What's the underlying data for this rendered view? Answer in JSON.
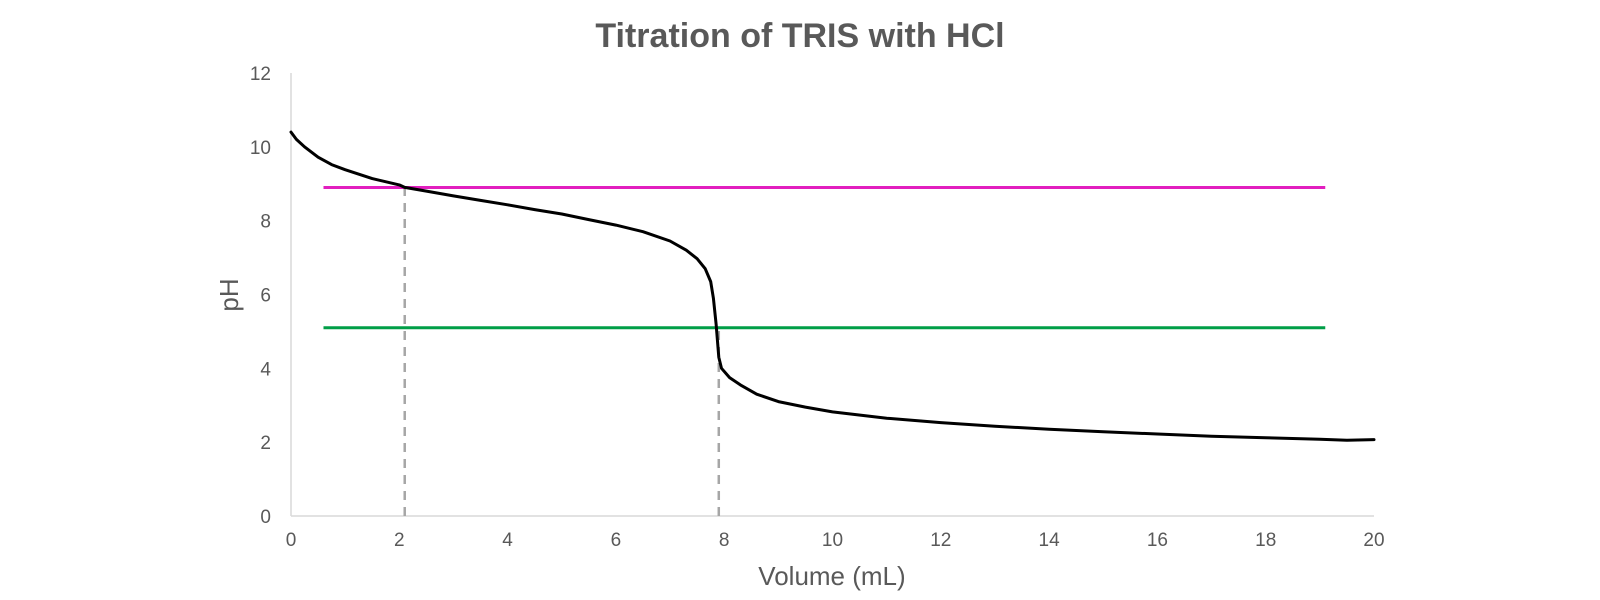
{
  "chart_data": {
    "type": "line",
    "title": "Titration of TRIS with HCl",
    "xlabel": "Volume (mL)",
    "ylabel": "pH",
    "xlim": [
      0,
      20
    ],
    "ylim": [
      0,
      12
    ],
    "x_ticks": [
      "0",
      "2",
      "4",
      "6",
      "8",
      "10",
      "12",
      "14",
      "16",
      "18",
      "20"
    ],
    "y_ticks": [
      "0",
      "2",
      "4",
      "6",
      "8",
      "10",
      "12"
    ],
    "grid": false,
    "legend": "none",
    "series": [
      {
        "color": "#000000",
        "points": [
          [
            0,
            10.4
          ],
          [
            0.1,
            10.2
          ],
          [
            0.25,
            10.0
          ],
          [
            0.5,
            9.72
          ],
          [
            0.75,
            9.52
          ],
          [
            1.0,
            9.38
          ],
          [
            1.5,
            9.14
          ],
          [
            2.0,
            8.97
          ],
          [
            2.1,
            8.9
          ],
          [
            2.5,
            8.8
          ],
          [
            3.0,
            8.67
          ],
          [
            3.5,
            8.55
          ],
          [
            4.0,
            8.43
          ],
          [
            4.5,
            8.3
          ],
          [
            5.0,
            8.18
          ],
          [
            5.5,
            8.03
          ],
          [
            6.0,
            7.88
          ],
          [
            6.5,
            7.7
          ],
          [
            7.0,
            7.45
          ],
          [
            7.3,
            7.2
          ],
          [
            7.5,
            6.97
          ],
          [
            7.65,
            6.7
          ],
          [
            7.75,
            6.35
          ],
          [
            7.8,
            5.9
          ],
          [
            7.85,
            5.2
          ],
          [
            7.9,
            4.3
          ],
          [
            7.95,
            4.0
          ],
          [
            8.1,
            3.75
          ],
          [
            8.3,
            3.55
          ],
          [
            8.6,
            3.3
          ],
          [
            9.0,
            3.1
          ],
          [
            9.5,
            2.95
          ],
          [
            10.0,
            2.82
          ],
          [
            11.0,
            2.65
          ],
          [
            12.0,
            2.53
          ],
          [
            13.0,
            2.43
          ],
          [
            14.0,
            2.35
          ],
          [
            15.0,
            2.28
          ],
          [
            16.0,
            2.22
          ],
          [
            17.0,
            2.16
          ],
          [
            18.0,
            2.12
          ],
          [
            19.0,
            2.08
          ],
          [
            19.5,
            2.05
          ],
          [
            20.0,
            2.07
          ]
        ]
      }
    ],
    "reference_lines": {
      "horizontal": [
        {
          "y": 8.9,
          "x_from": 0.6,
          "x_to": 19.1,
          "color": "#e21fbf"
        },
        {
          "y": 5.1,
          "x_from": 0.6,
          "x_to": 19.1,
          "color": "#009e47"
        }
      ],
      "vertical": [
        {
          "x": 2.1,
          "y_from": 0,
          "y_to": 8.9,
          "color": "#a6a6a6",
          "style": "dashed"
        },
        {
          "x": 7.9,
          "y_from": 0,
          "y_to": 5.1,
          "color": "#a6a6a6",
          "style": "dashed"
        }
      ]
    }
  }
}
